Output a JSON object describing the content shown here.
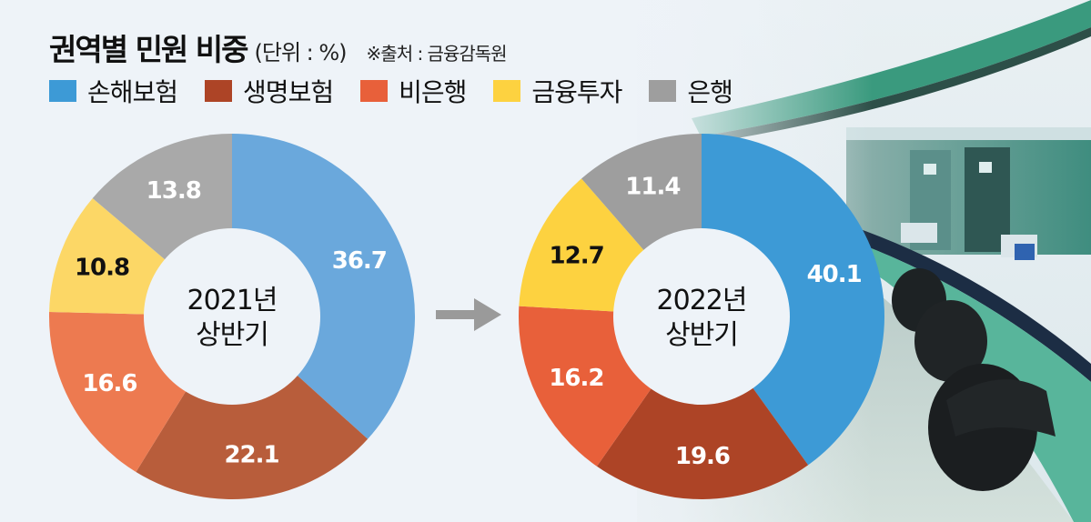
{
  "header": {
    "title": "권역별 민원 비중",
    "unit": "(단위 : %)",
    "source": "※출처 : 금융감독원"
  },
  "legend": [
    {
      "label": "손해보험",
      "color": "#3d9ad6"
    },
    {
      "label": "생명보험",
      "color": "#ad4426"
    },
    {
      "label": "비은행",
      "color": "#e8603a"
    },
    {
      "label": "금융투자",
      "color": "#fdd240"
    },
    {
      "label": "은행",
      "color": "#9e9e9e"
    }
  ],
  "arrow": {
    "icon": "arrow-right-icon",
    "color": "#9a9a9a"
  },
  "chart_data": [
    {
      "type": "pie",
      "variant": "donut",
      "title": "2021년 상반기",
      "center_label": [
        "2021년",
        "상반기"
      ],
      "categories": [
        "손해보험",
        "생명보험",
        "비은행",
        "금융투자",
        "은행"
      ],
      "values": [
        36.7,
        22.1,
        16.6,
        10.8,
        13.8
      ],
      "colors": [
        "#6aa8dc",
        "#b85d3b",
        "#ed7a50",
        "#fcd766",
        "#a9a9a9"
      ],
      "label_colors": [
        "#ffffff",
        "#ffffff",
        "#ffffff",
        "#111111",
        "#ffffff"
      ],
      "unit": "%",
      "start_angle": "12 o'clock, clockwise"
    },
    {
      "type": "pie",
      "variant": "donut",
      "title": "2022년 상반기",
      "center_label": [
        "2022년",
        "상반기"
      ],
      "categories": [
        "손해보험",
        "생명보험",
        "비은행",
        "금융투자",
        "은행"
      ],
      "values": [
        40.1,
        19.6,
        16.2,
        12.7,
        11.4
      ],
      "colors": [
        "#3d9ad6",
        "#ad4426",
        "#e8603a",
        "#fdd240",
        "#9e9e9e"
      ],
      "label_colors": [
        "#ffffff",
        "#ffffff",
        "#ffffff",
        "#111111",
        "#ffffff"
      ],
      "unit": "%",
      "start_angle": "12 o'clock, clockwise"
    }
  ]
}
